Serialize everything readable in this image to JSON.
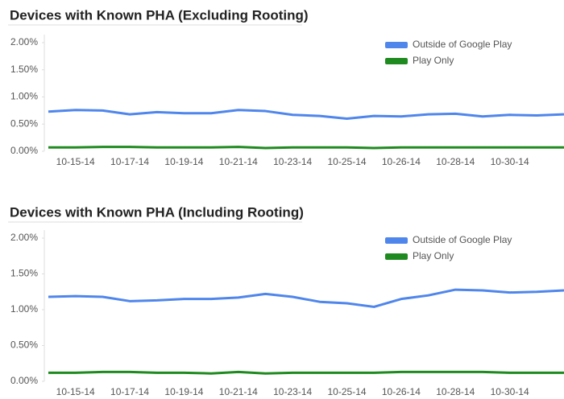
{
  "chart_data": [
    {
      "type": "line",
      "title": "Devices with Known PHA (Excluding Rooting)",
      "categories": [
        null,
        "10-15-14",
        null,
        "10-17-14",
        null,
        "10-19-14",
        null,
        "10-21-14",
        null,
        "10-23-14",
        null,
        "10-25-14",
        null,
        "10-26-14",
        null,
        "10-28-14",
        null,
        "10-30-14",
        null,
        null
      ],
      "series": [
        {
          "name": "Outside of Google Play",
          "color": "#4f86ec",
          "values": [
            0.73,
            0.76,
            0.75,
            0.68,
            0.72,
            0.7,
            0.7,
            0.76,
            0.74,
            0.67,
            0.65,
            0.6,
            0.65,
            0.64,
            0.68,
            0.69,
            0.64,
            0.67,
            0.66,
            0.68
          ]
        },
        {
          "name": "Play Only",
          "color": "#1f8a1f",
          "values": [
            0.07,
            0.07,
            0.08,
            0.08,
            0.07,
            0.07,
            0.07,
            0.08,
            0.06,
            0.07,
            0.07,
            0.07,
            0.06,
            0.07,
            0.07,
            0.07,
            0.07,
            0.07,
            0.07,
            0.07
          ]
        }
      ],
      "ylim": [
        0,
        2
      ],
      "yticks": [
        {
          "value": 0,
          "label": "0.00%"
        },
        {
          "value": 0.5,
          "label": "0.50%"
        },
        {
          "value": 1,
          "label": "1.00%"
        },
        {
          "value": 1.5,
          "label": "1.50%"
        },
        {
          "value": 2,
          "label": "2.00%"
        }
      ],
      "legend": "top-right"
    },
    {
      "type": "line",
      "title": "Devices with Known PHA (Including Rooting)",
      "categories": [
        null,
        "10-15-14",
        null,
        "10-17-14",
        null,
        "10-19-14",
        null,
        "10-21-14",
        null,
        "10-23-14",
        null,
        "10-25-14",
        null,
        "10-26-14",
        null,
        "10-28-14",
        null,
        "10-30-14",
        null,
        null
      ],
      "series": [
        {
          "name": "Outside of Google Play",
          "color": "#4f86ec",
          "values": [
            1.18,
            1.19,
            1.18,
            1.12,
            1.13,
            1.15,
            1.15,
            1.17,
            1.22,
            1.18,
            1.11,
            1.09,
            1.04,
            1.15,
            1.2,
            1.28,
            1.27,
            1.24,
            1.25,
            1.27
          ]
        },
        {
          "name": "Play Only",
          "color": "#1f8a1f",
          "values": [
            0.12,
            0.12,
            0.13,
            0.13,
            0.12,
            0.12,
            0.11,
            0.13,
            0.11,
            0.12,
            0.12,
            0.12,
            0.12,
            0.13,
            0.13,
            0.13,
            0.13,
            0.12,
            0.12,
            0.12
          ]
        }
      ],
      "ylim": [
        0,
        2
      ],
      "yticks": [
        {
          "value": 0,
          "label": "0.00%"
        },
        {
          "value": 0.5,
          "label": "0.50%"
        },
        {
          "value": 1,
          "label": "1.00%"
        },
        {
          "value": 1.5,
          "label": "1.50%"
        },
        {
          "value": 2,
          "label": "2.00%"
        }
      ],
      "legend": "top-right"
    }
  ]
}
